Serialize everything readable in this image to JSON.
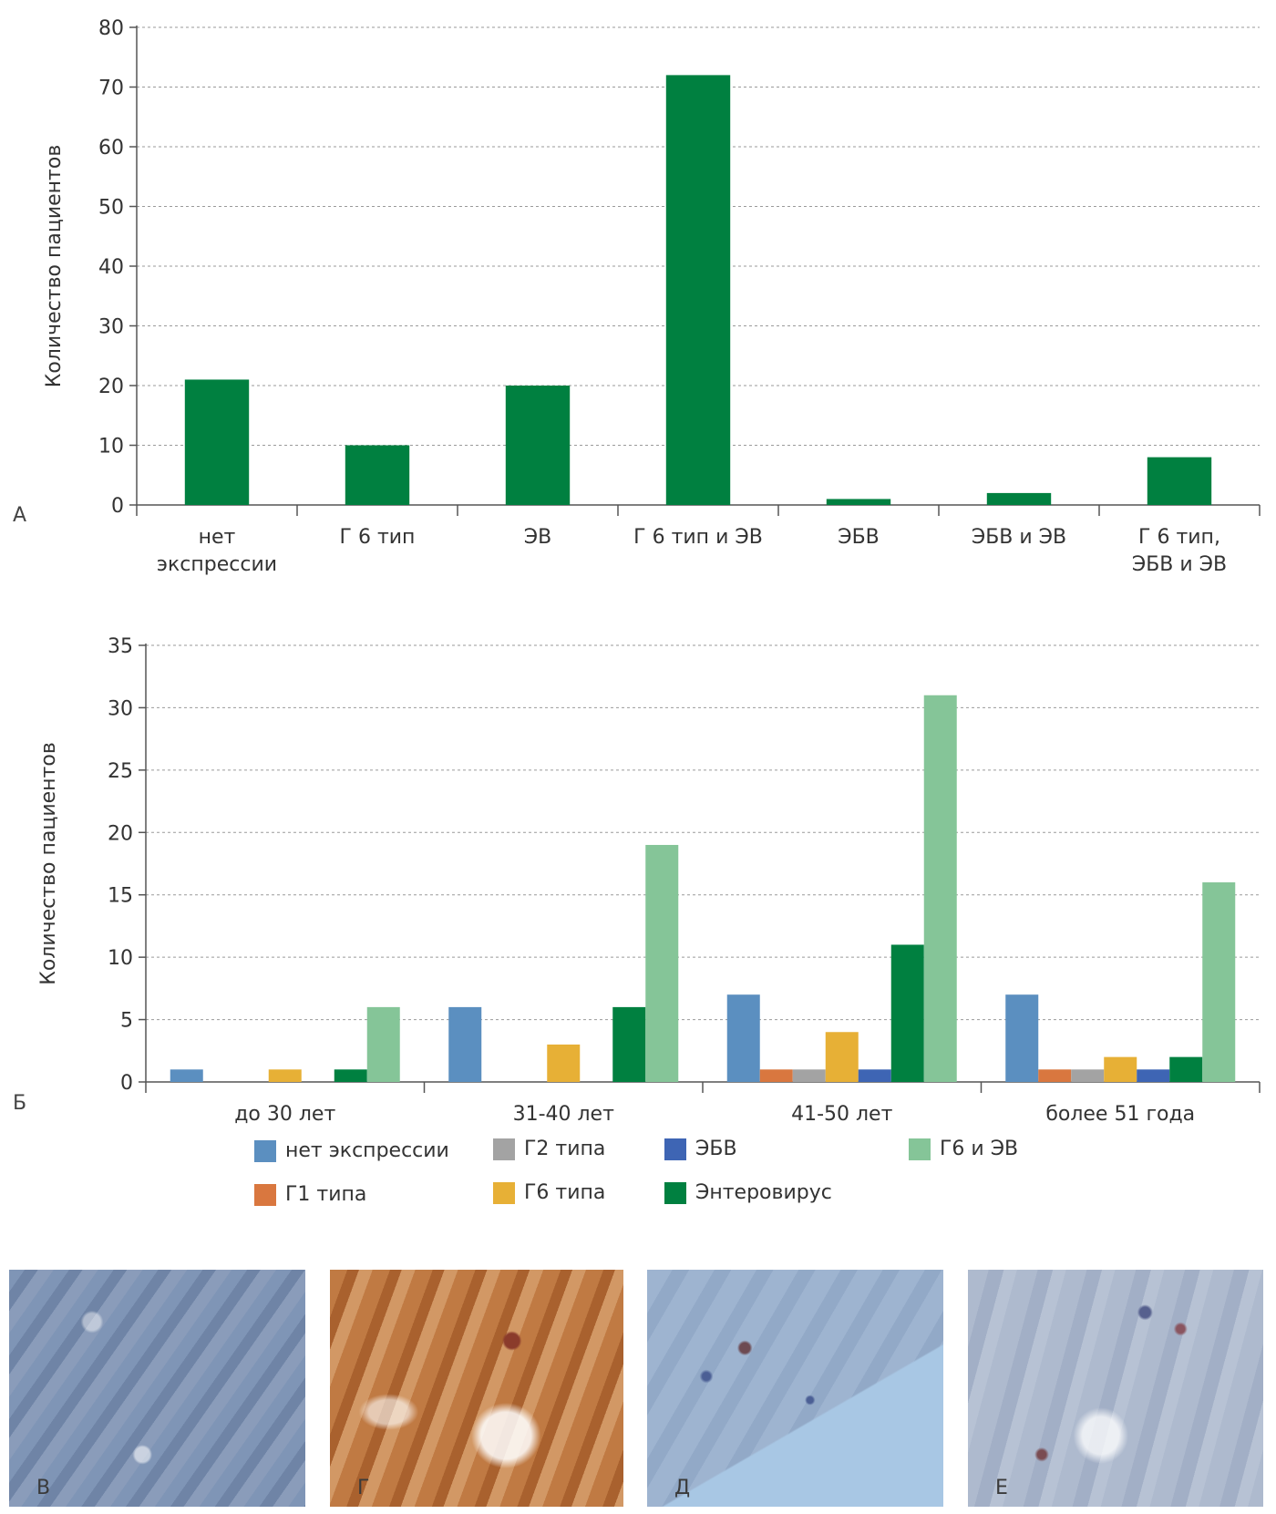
{
  "chart_data": [
    {
      "type": "bar",
      "panel_label": "А",
      "categories": [
        [
          "нет",
          "экспрессии"
        ],
        [
          "Г 6 тип"
        ],
        [
          "ЭВ"
        ],
        [
          "Г 6 тип и ЭВ"
        ],
        [
          "ЭБВ"
        ],
        [
          "ЭБВ и ЭВ"
        ],
        [
          "Г 6 тип,",
          "ЭБВ и ЭВ"
        ]
      ],
      "values": [
        21,
        10,
        20,
        72,
        1,
        2,
        8
      ],
      "ylabel": "Количество пациентов",
      "ylim": [
        0,
        80
      ],
      "yticks": [
        0,
        10,
        20,
        30,
        40,
        50,
        60,
        70,
        80
      ],
      "grid": true,
      "bar_color": "#008040"
    },
    {
      "type": "bar",
      "panel_label": "Б",
      "categories": [
        "до 30 лет",
        "31-40 лет",
        "41-50 лет",
        "более 51 года"
      ],
      "ylabel": "Количество пациентов",
      "ylim": [
        0,
        35
      ],
      "yticks": [
        0,
        5,
        10,
        15,
        20,
        25,
        30,
        35
      ],
      "grid": true,
      "legend_placement": "bottom",
      "series": [
        {
          "name": "нет экспрессии",
          "color": "#5b8fc0",
          "values": [
            1,
            6,
            7,
            7
          ]
        },
        {
          "name": "Г1 типа",
          "color": "#d9773f",
          "values": [
            0,
            0,
            1,
            1
          ]
        },
        {
          "name": "Г2 типа",
          "color": "#a3a3a3",
          "values": [
            0,
            0,
            1,
            1
          ]
        },
        {
          "name": "Г6 типа",
          "color": "#e7b036",
          "values": [
            1,
            3,
            4,
            2
          ]
        },
        {
          "name": "ЭБВ",
          "color": "#3e65b4",
          "values": [
            0,
            0,
            1,
            1
          ]
        },
        {
          "name": "Энтеровирус",
          "color": "#008040",
          "values": [
            1,
            6,
            11,
            2
          ]
        },
        {
          "name": "Г6 и ЭВ",
          "color": "#85c598",
          "values": [
            6,
            19,
            31,
            16
          ]
        }
      ]
    }
  ],
  "photos": [
    {
      "label": "В",
      "tone": "blue-tissue"
    },
    {
      "label": "Г",
      "tone": "brown-tissue"
    },
    {
      "label": "Д",
      "tone": "light-blue-tissue"
    },
    {
      "label": "Е",
      "tone": "grey-blue-tissue"
    }
  ]
}
